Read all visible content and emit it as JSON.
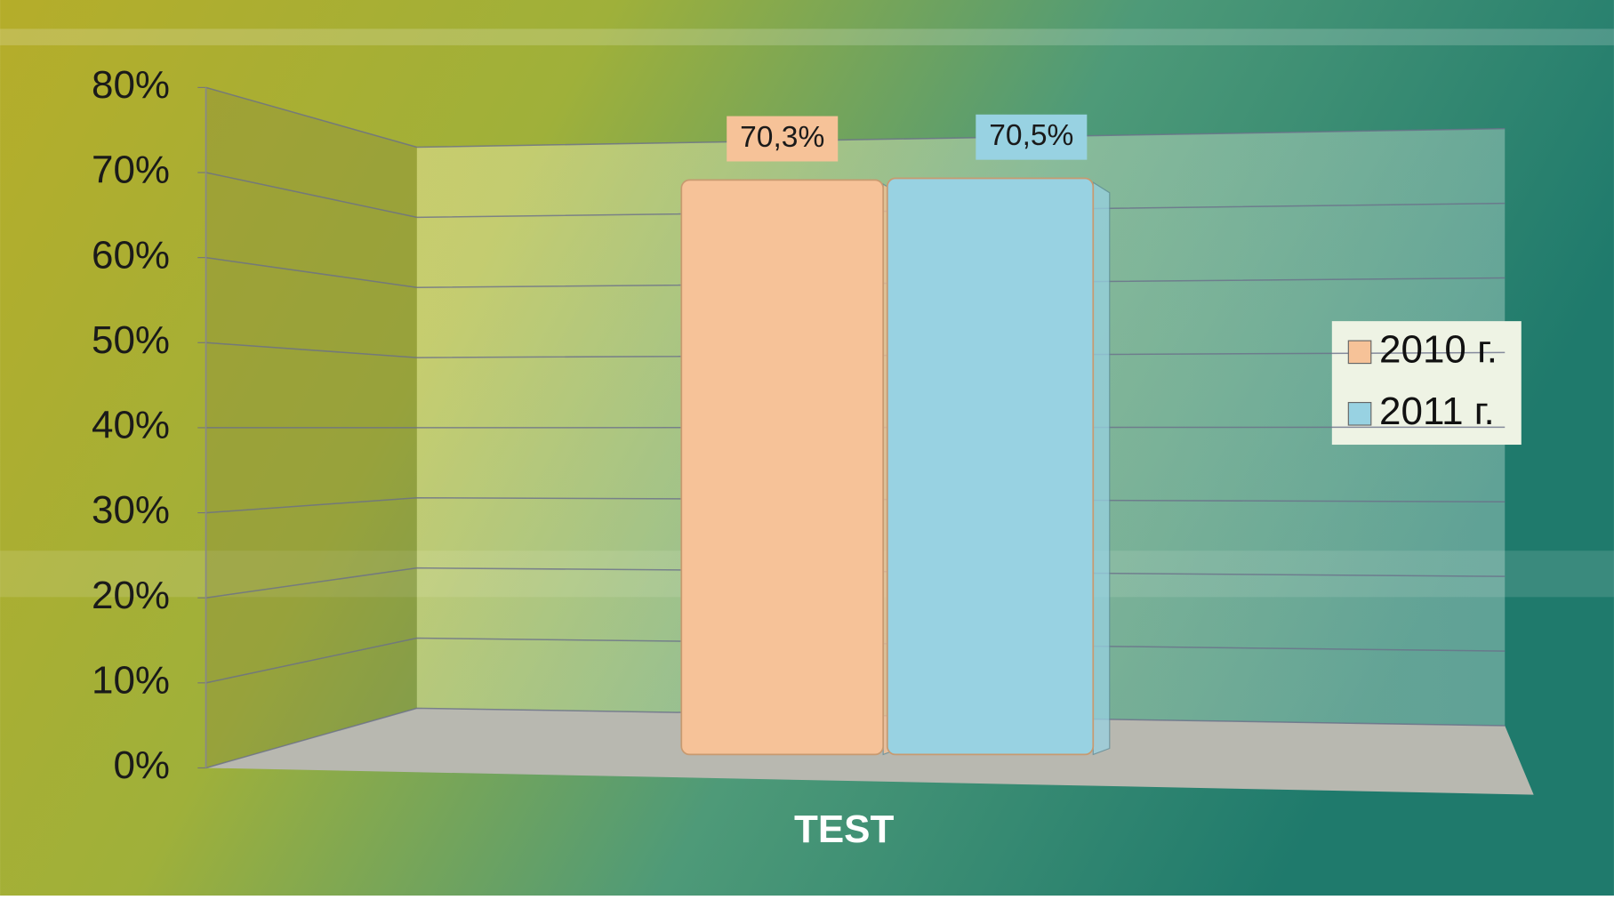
{
  "chart_data": {
    "type": "bar3d",
    "categories": [
      "TEST"
    ],
    "series": [
      {
        "name": "2010 г.",
        "color": "#f6c298",
        "values": [
          70.3
        ],
        "value_labels": [
          "70,3%"
        ]
      },
      {
        "name": "2011 г.",
        "color": "#98d2e2",
        "values": [
          70.5
        ],
        "value_labels": [
          "70,5%"
        ]
      }
    ],
    "ylim": [
      0,
      80
    ],
    "yticks": [
      {
        "value": 0,
        "label": "0%"
      },
      {
        "value": 10,
        "label": "10%"
      },
      {
        "value": 20,
        "label": "20%"
      },
      {
        "value": 30,
        "label": "30%"
      },
      {
        "value": 40,
        "label": "40%"
      },
      {
        "value": 50,
        "label": "50%"
      },
      {
        "value": 60,
        "label": "60%"
      },
      {
        "value": 70,
        "label": "70%"
      },
      {
        "value": 80,
        "label": "80%"
      }
    ],
    "grid": true,
    "legend": "right"
  }
}
